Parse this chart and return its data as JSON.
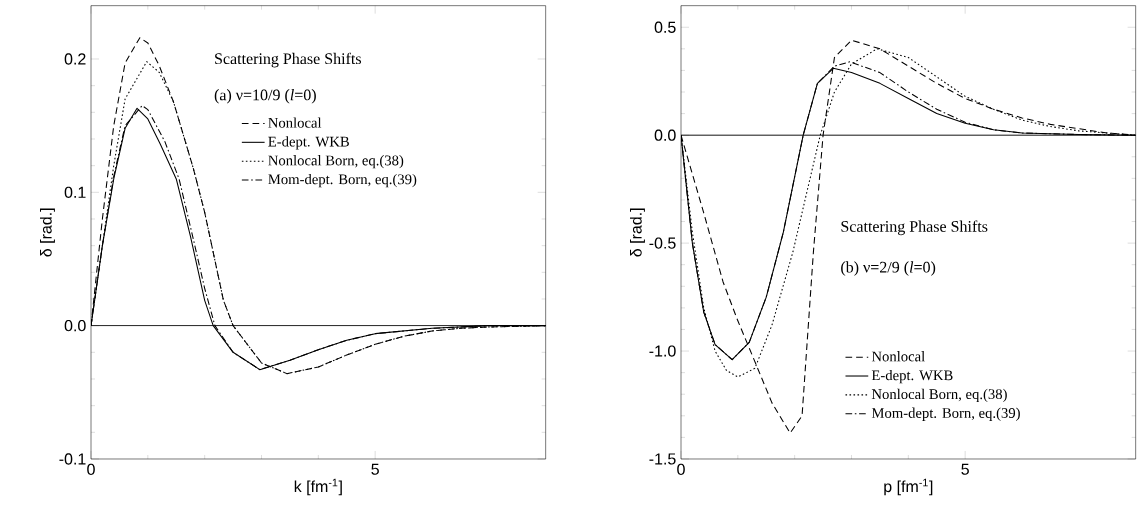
{
  "chart_data": [
    {
      "type": "line",
      "xlabel": "k [fm$^{-1}$]",
      "ylabel": "δ [rad.]",
      "xlim": [
        0,
        8
      ],
      "ylim": [
        -0.1,
        0.24
      ],
      "xticks": [
        0,
        5
      ],
      "yticks": [
        {
          "value": -0.1,
          "label": "-0.1"
        },
        {
          "value": 0,
          "label": "0.0"
        },
        {
          "value": 0.1,
          "label": "0.1"
        },
        {
          "value": 0.2,
          "label": "0.2"
        }
      ],
      "legend": "top right",
      "grid": false,
      "annotations": [
        "Scattering Phase Shifts",
        "(a) ν=10/9 (*l*=0)"
      ],
      "ref_lines": [
        {
          "axis": "y",
          "value": 0,
          "color": "#000000",
          "line_style": "solid"
        }
      ],
      "series": [
        {
          "name": "Nonlocal",
          "color": "#000000",
          "line_style": "dashed",
          "x": [
            0,
            0.2,
            0.4,
            0.6,
            0.86,
            1.0,
            1.2,
            1.45,
            1.8,
            2.0,
            2.33,
            2.5,
            3.0,
            3.45,
            4.0,
            4.5,
            5.0,
            5.5,
            6.0,
            6.5,
            7.0,
            8.0
          ],
          "values": [
            0,
            0.08,
            0.15,
            0.197,
            0.216,
            0.212,
            0.195,
            0.168,
            0.118,
            0.085,
            0.019,
            0,
            -0.028,
            -0.036,
            -0.031,
            -0.022,
            -0.014,
            -0.008,
            -0.004,
            -0.002,
            -0.001,
            0
          ]
        },
        {
          "name": "E-dept. WKB",
          "color": "#000000",
          "line_style": "solid",
          "x": [
            0,
            0.2,
            0.4,
            0.6,
            0.81,
            1.0,
            1.22,
            1.5,
            1.75,
            2.0,
            2.15,
            2.5,
            2.97,
            3.5,
            4.0,
            4.5,
            5.0,
            6.0,
            7.0,
            8.0
          ],
          "values": [
            0,
            0.06,
            0.11,
            0.148,
            0.163,
            0.155,
            0.136,
            0.11,
            0.067,
            0.019,
            0,
            -0.02,
            -0.033,
            -0.026,
            -0.018,
            -0.011,
            -0.006,
            -0.002,
            0,
            0
          ]
        },
        {
          "name": "Nonlocal Born, eq.(38)",
          "color": "#000000",
          "line_style": "dotted",
          "x": [
            0,
            0.2,
            0.4,
            0.6,
            0.98,
            1.2,
            1.45,
            1.8,
            2.0,
            2.33,
            2.5,
            3.0,
            3.45,
            4.0,
            4.5,
            5.0,
            5.5,
            6.0,
            6.5,
            7.0,
            8.0
          ],
          "values": [
            0,
            0.06,
            0.12,
            0.17,
            0.198,
            0.19,
            0.168,
            0.118,
            0.085,
            0.019,
            0,
            -0.028,
            -0.036,
            -0.031,
            -0.022,
            -0.014,
            -0.008,
            -0.004,
            -0.002,
            -0.001,
            0
          ]
        },
        {
          "name": "Mom-dept. Born, eq.(39)",
          "color": "#000000",
          "line_style": "dashdot",
          "x": [
            0,
            0.2,
            0.4,
            0.6,
            0.9,
            1.0,
            1.3,
            1.55,
            1.8,
            2.0,
            2.18,
            2.5,
            2.97,
            3.5,
            4.0,
            4.5,
            5.0,
            6.0,
            7.0,
            8.0
          ],
          "values": [
            0,
            0.06,
            0.112,
            0.15,
            0.165,
            0.162,
            0.138,
            0.11,
            0.065,
            0.028,
            0,
            -0.02,
            -0.033,
            -0.026,
            -0.018,
            -0.011,
            -0.006,
            -0.002,
            0,
            0
          ]
        }
      ]
    },
    {
      "type": "line",
      "xlabel": "p [fm$^{-1}$]",
      "ylabel": "δ [rad.]",
      "xlim": [
        0,
        8
      ],
      "ylim": [
        -1.5,
        0.6
      ],
      "xticks": [
        0,
        5
      ],
      "yticks": [
        {
          "value": -1.5,
          "label": "-1.5"
        },
        {
          "value": -1.0,
          "label": "-1.0"
        },
        {
          "value": -0.5,
          "label": "-0.5"
        },
        {
          "value": 0,
          "label": "0.0"
        },
        {
          "value": 0.5,
          "label": "0.5"
        }
      ],
      "legend": "bottom right",
      "grid": false,
      "annotations": [
        "Scattering Phase Shifts",
        "(b) ν=2/9 (*l*=0)"
      ],
      "ref_lines": [
        {
          "axis": "y",
          "value": 0,
          "color": "#000000",
          "line_style": "solid"
        }
      ],
      "series": [
        {
          "name": "Nonlocal",
          "color": "#000000",
          "line_style": "dashed",
          "x": [
            0,
            0.4,
            0.74,
            1.0,
            1.27,
            1.6,
            1.92,
            2.13,
            2.33,
            2.5,
            2.7,
            3.0,
            3.5,
            4.0,
            4.5,
            5.0,
            5.5,
            6.0,
            6.5,
            7.0,
            7.5,
            8.0
          ],
          "values": [
            0,
            -0.36,
            -0.68,
            -0.86,
            -1.03,
            -1.24,
            -1.38,
            -1.3,
            -0.54,
            0,
            0.36,
            0.44,
            0.4,
            0.32,
            0.24,
            0.17,
            0.12,
            0.08,
            0.05,
            0.03,
            0.01,
            0
          ]
        },
        {
          "name": "E-dept. WKB",
          "color": "#000000",
          "line_style": "solid",
          "x": [
            0,
            0.2,
            0.4,
            0.6,
            0.9,
            1.2,
            1.5,
            1.8,
            2.15,
            2.4,
            2.68,
            3.0,
            3.5,
            4.0,
            4.5,
            5.0,
            5.5,
            6.0,
            7.0,
            8.0
          ],
          "values": [
            0,
            -0.5,
            -0.82,
            -0.97,
            -1.04,
            -0.96,
            -0.75,
            -0.45,
            0,
            0.24,
            0.31,
            0.29,
            0.24,
            0.17,
            0.1,
            0.055,
            0.025,
            0.01,
            0.003,
            0
          ]
        },
        {
          "name": "Nonlocal Born, eq.(38)",
          "color": "#000000",
          "line_style": "dotted",
          "x": [
            0,
            0.2,
            0.4,
            0.6,
            0.8,
            1.0,
            1.3,
            1.6,
            1.97,
            2.2,
            2.45,
            2.7,
            3.0,
            3.45,
            4.0,
            4.5,
            5.0,
            5.5,
            6.0,
            6.5,
            7.0,
            7.5,
            8.0
          ],
          "values": [
            0,
            -0.45,
            -0.8,
            -1.0,
            -1.09,
            -1.12,
            -1.08,
            -0.88,
            -0.54,
            -0.28,
            0,
            0.2,
            0.33,
            0.4,
            0.36,
            0.27,
            0.18,
            0.12,
            0.07,
            0.04,
            0.02,
            0.01,
            0
          ]
        },
        {
          "name": "Mom-dept. Born, eq.(39)",
          "color": "#000000",
          "line_style": "dashdot",
          "x": [
            0,
            0.2,
            0.4,
            0.6,
            0.9,
            1.2,
            1.5,
            1.8,
            2.15,
            2.4,
            2.7,
            2.97,
            3.5,
            4.0,
            4.5,
            5.0,
            5.5,
            6.0,
            7.0,
            8.0
          ],
          "values": [
            0,
            -0.5,
            -0.82,
            -0.97,
            -1.04,
            -0.96,
            -0.75,
            -0.45,
            0,
            0.24,
            0.32,
            0.34,
            0.29,
            0.2,
            0.12,
            0.06,
            0.025,
            0.01,
            0.003,
            0
          ]
        }
      ]
    }
  ]
}
